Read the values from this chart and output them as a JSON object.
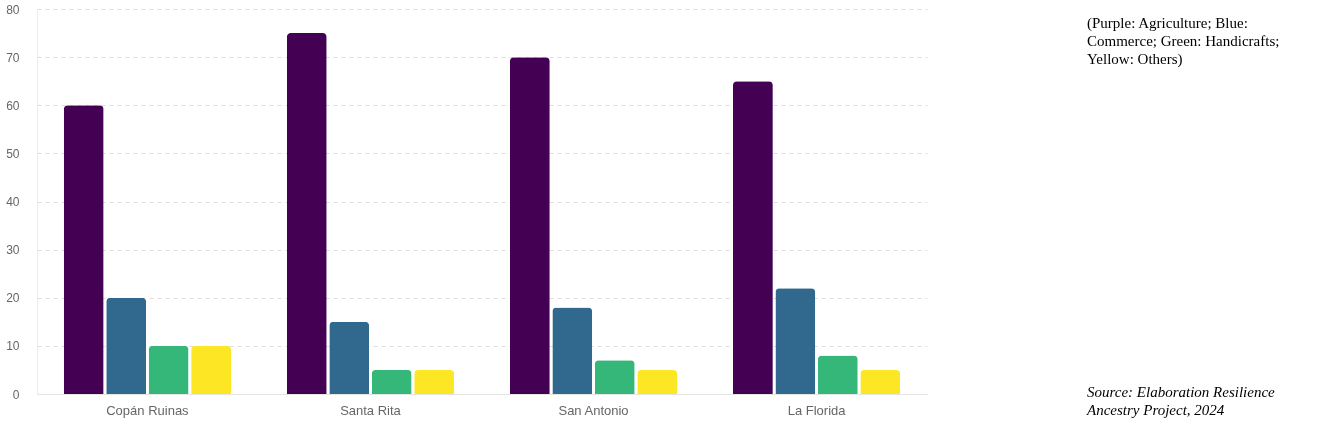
{
  "chart_data": {
    "type": "bar",
    "categories": [
      "Copán Ruinas",
      "Santa Rita",
      "San Antonio",
      "La Florida"
    ],
    "series": [
      {
        "color": "#440154",
        "values": [
          60,
          75,
          70,
          65
        ]
      },
      {
        "color": "#31688e",
        "values": [
          20,
          15,
          18,
          22
        ]
      },
      {
        "color": "#35b779",
        "values": [
          10,
          5,
          7,
          8
        ]
      },
      {
        "color": "#fde725",
        "values": [
          10,
          5,
          5,
          5
        ]
      }
    ],
    "ylim": [
      0,
      80
    ],
    "yticks": [
      0,
      10,
      20,
      30,
      40,
      50,
      60,
      70,
      80
    ],
    "grid": "y",
    "annotations": [
      "(Purple: Agriculture; Blue: Commerce; Green: Handicrafts; Yellow: Others)",
      "Source: Elaboration Resilience Ancestry Project, 2024"
    ]
  }
}
